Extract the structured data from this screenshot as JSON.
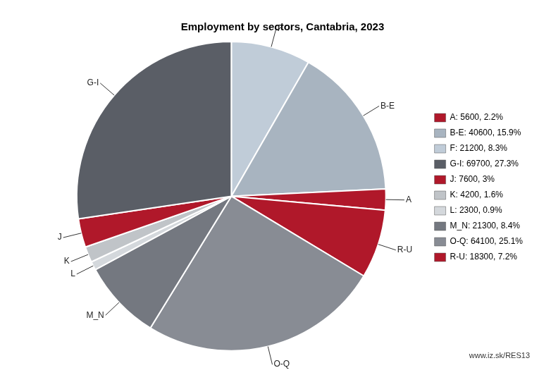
{
  "chart_data": {
    "type": "pie",
    "title": "Employment by sectors, Cantabria, 2023",
    "categories": [
      "F",
      "B-E",
      "A",
      "R-U",
      "O-Q",
      "M_N",
      "L",
      "K",
      "J",
      "G-I"
    ],
    "values": [
      21200,
      40600,
      5600,
      18300,
      64100,
      21300,
      2300,
      4200,
      7600,
      69700
    ],
    "colors": [
      "#c0ccd8",
      "#a8b4c0",
      "#b0182a",
      "#b0182a",
      "#888c94",
      "#747880",
      "#d4d8dc",
      "#c0c4c8",
      "#b0182a",
      "#5a5e66"
    ],
    "legend": "right",
    "legend_entries": [
      {
        "category": "A",
        "label": "A: 5600, 2.2%"
      },
      {
        "category": "B-E",
        "label": "B-E: 40600, 15.9%"
      },
      {
        "category": "F",
        "label": "F: 21200, 8.3%"
      },
      {
        "category": "G-I",
        "label": "G-I: 69700, 27.3%"
      },
      {
        "category": "J",
        "label": "J: 7600, 3%"
      },
      {
        "category": "K",
        "label": "K: 4200, 1.6%"
      },
      {
        "category": "L",
        "label": "L: 2300, 0.9%"
      },
      {
        "category": "M_N",
        "label": "M_N: 21300, 8.4%"
      },
      {
        "category": "O-Q",
        "label": "O-Q: 64100, 25.1%"
      },
      {
        "category": "R-U",
        "label": "R-U: 18300, 7.2%"
      }
    ],
    "watermark": "www.iz.sk/RES13"
  }
}
